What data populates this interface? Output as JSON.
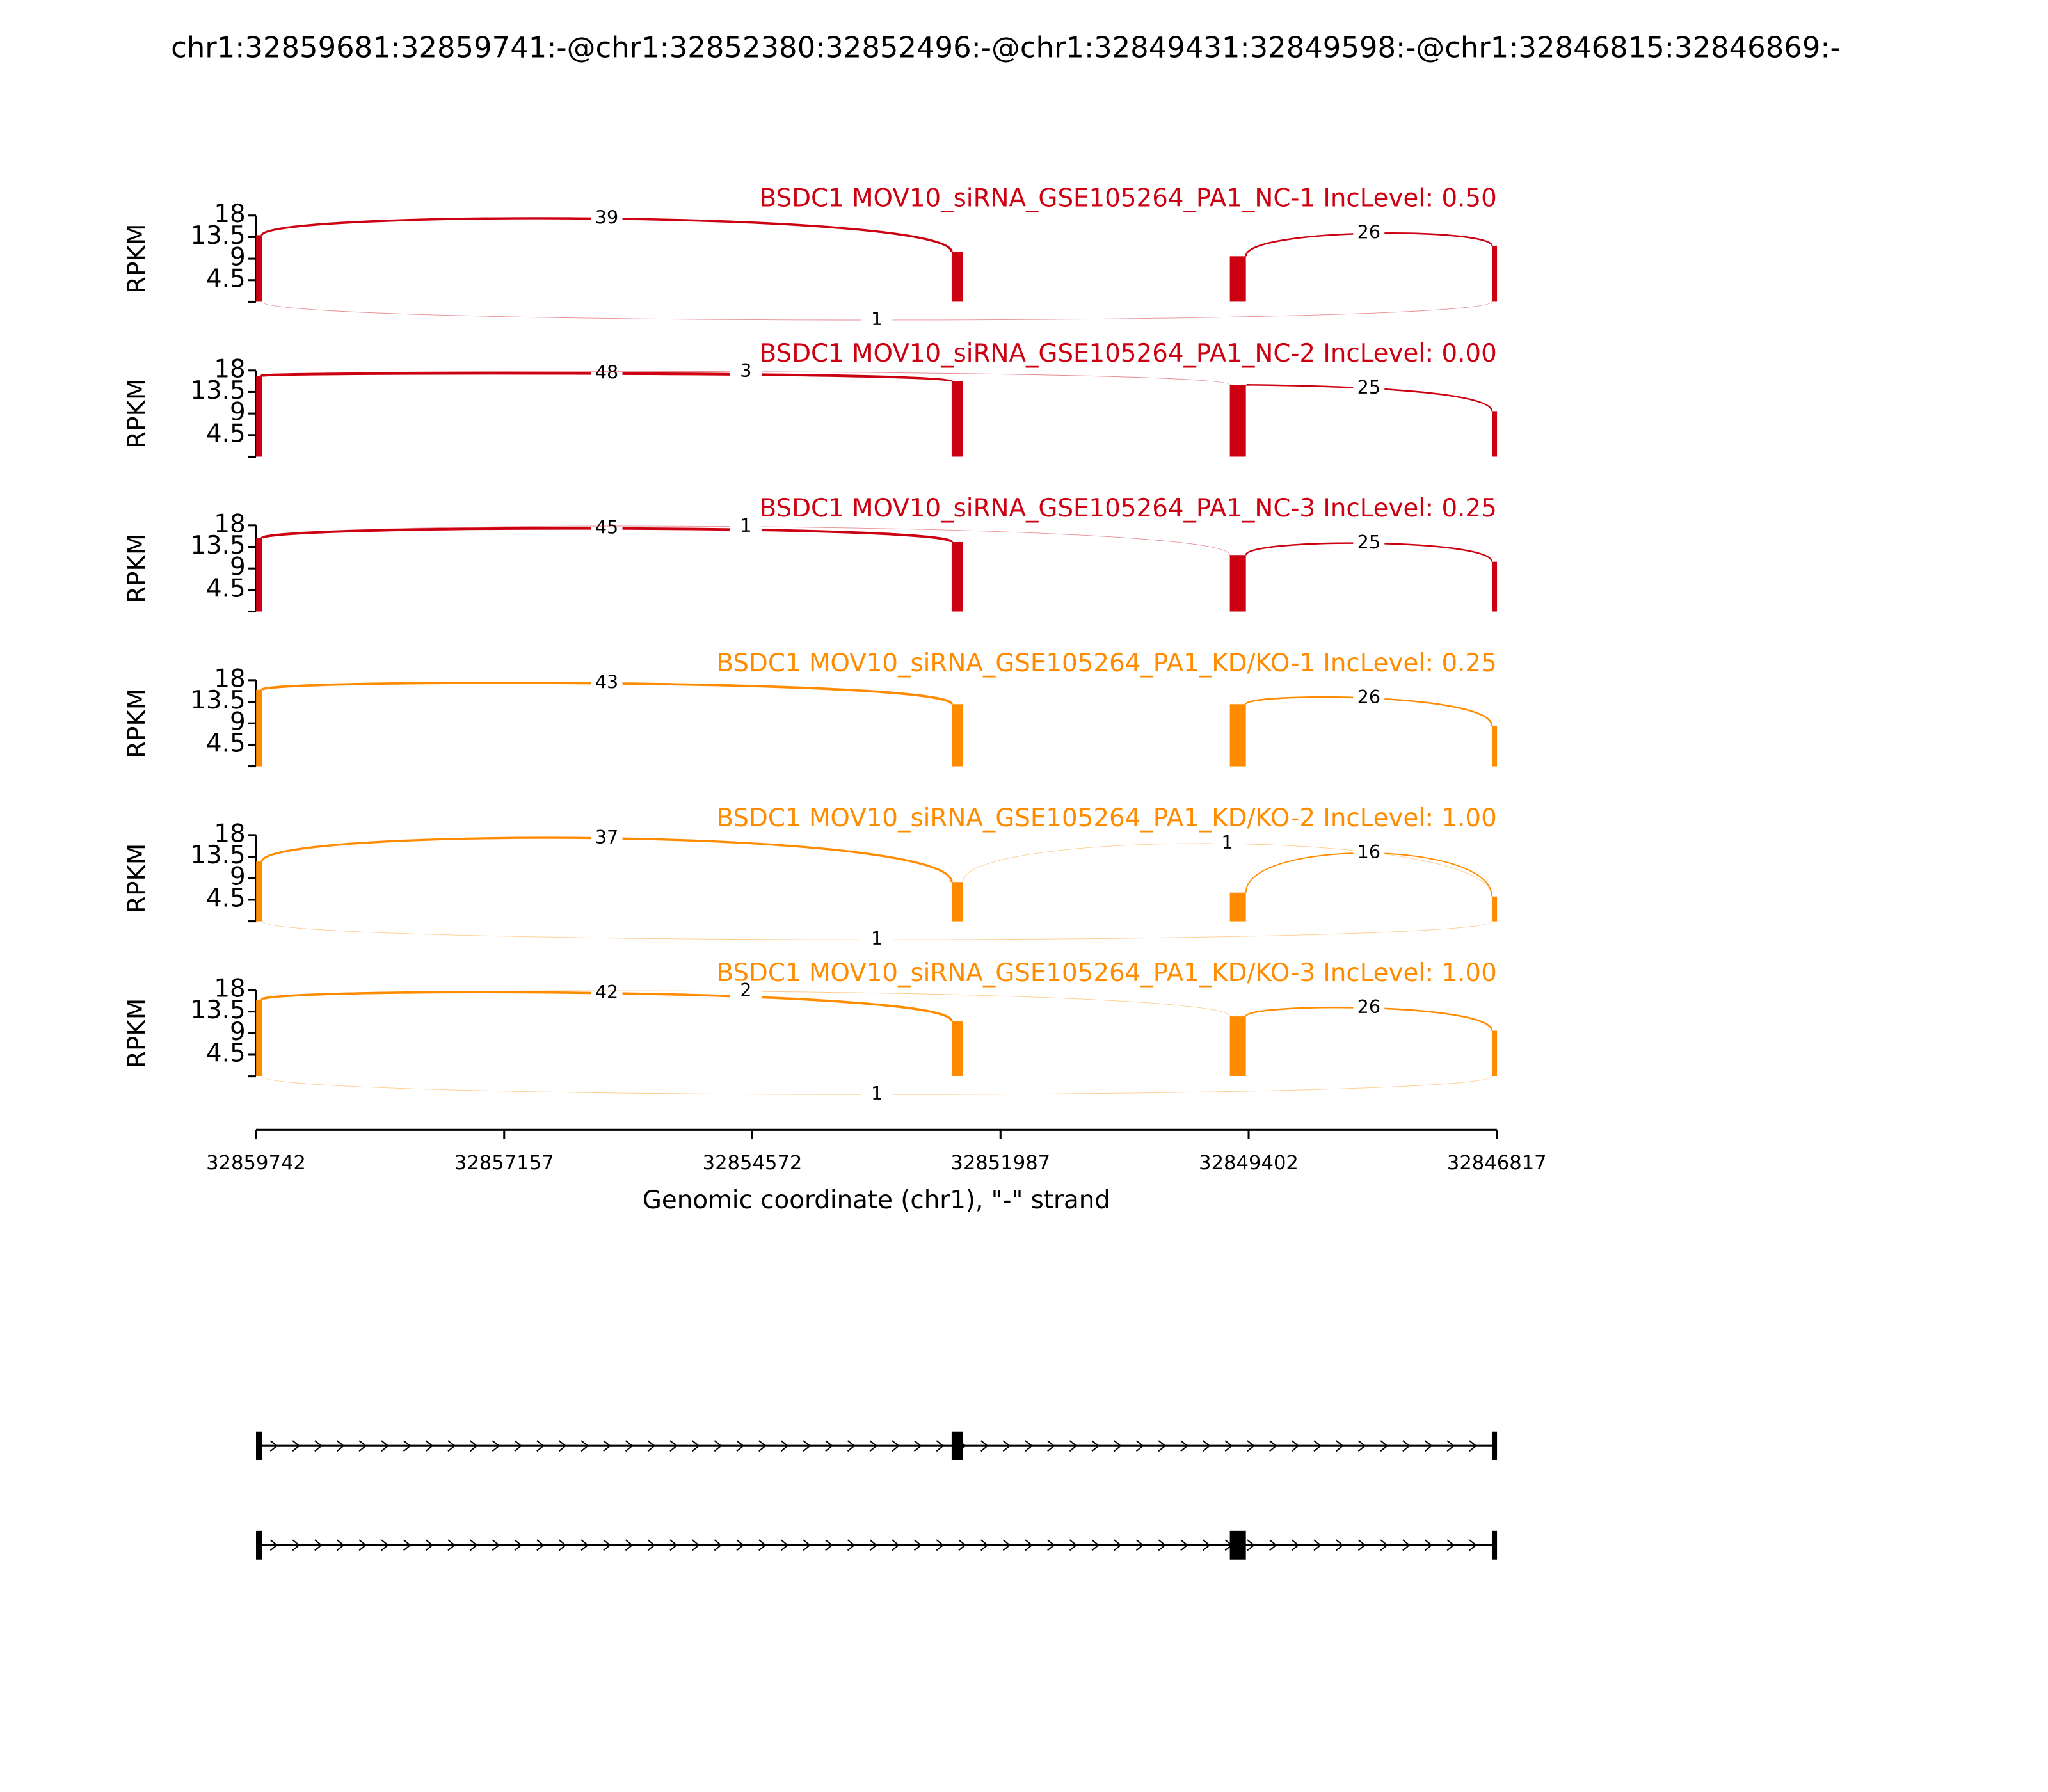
{
  "chart_data": {
    "type": "sashimi",
    "title": "chr1:32859681:32859741:-@chr1:32852380:32852496:-@chr1:32849431:32849598:-@chr1:32846815:32846869:-",
    "ylabel": "RPKM",
    "xlabel": "Genomic coordinate (chr1), \"-\" strand",
    "xlim": [
      32859742,
      32846817
    ],
    "xticks": [
      32859742,
      32857157,
      32854572,
      32851987,
      32849402,
      32846817
    ],
    "ylim": [
      0,
      18
    ],
    "yticks": [
      4.5,
      9,
      13.5,
      18
    ],
    "exons": [
      [
        32859741,
        32859681
      ],
      [
        32852496,
        32852380
      ],
      [
        32849598,
        32849431
      ],
      [
        32846869,
        32846815
      ]
    ],
    "panels": [
      {
        "title": "BSDC1 MOV10_siRNA_GSE105264_PA1_NC-1 IncLevel: 0.50",
        "color": "#cc0011",
        "coverage": [
          13.9,
          10.4,
          9.5,
          11.7
        ],
        "junctions": [
          {
            "start": 32859681,
            "end": 32852496,
            "count": 39
          },
          {
            "start": 32849431,
            "end": 32846869,
            "count": 26
          },
          {
            "start": 32859681,
            "end": 32846869,
            "count": 1
          }
        ]
      },
      {
        "title": "BSDC1 MOV10_siRNA_GSE105264_PA1_NC-2 IncLevel: 0.00",
        "color": "#cc0011",
        "coverage": [
          16.9,
          15.8,
          15,
          9.5
        ],
        "junctions": [
          {
            "start": 32859681,
            "end": 32852496,
            "count": 48
          },
          {
            "start": 32859681,
            "end": 32849598,
            "count": 3
          },
          {
            "start": 32849431,
            "end": 32846869,
            "count": 25
          }
        ]
      },
      {
        "title": "BSDC1 MOV10_siRNA_GSE105264_PA1_NC-3 IncLevel: 0.25",
        "color": "#cc0011",
        "coverage": [
          15.3,
          14.5,
          11.8,
          10.4
        ],
        "junctions": [
          {
            "start": 32859681,
            "end": 32852496,
            "count": 45
          },
          {
            "start": 32859681,
            "end": 32849598,
            "count": 1
          },
          {
            "start": 32849431,
            "end": 32846869,
            "count": 25
          }
        ]
      },
      {
        "title": "BSDC1 MOV10_siRNA_GSE105264_PA1_KD/KO-1 IncLevel: 0.25",
        "color": "#ff8c00",
        "coverage": [
          16,
          13,
          13,
          8.5
        ],
        "junctions": [
          {
            "start": 32859681,
            "end": 32852496,
            "count": 43
          },
          {
            "start": 32849431,
            "end": 32846869,
            "count": 26
          }
        ]
      },
      {
        "title": "BSDC1 MOV10_siRNA_GSE105264_PA1_KD/KO-2 IncLevel: 1.00",
        "color": "#ff8c00",
        "coverage": [
          12.5,
          8.2,
          6,
          5.2
        ],
        "junctions": [
          {
            "start": 32859681,
            "end": 32852496,
            "count": 37
          },
          {
            "start": 32852380,
            "end": 32846869,
            "count": 1
          },
          {
            "start": 32849431,
            "end": 32846869,
            "count": 16
          },
          {
            "start": 32859681,
            "end": 32846869,
            "count": 1
          }
        ]
      },
      {
        "title": "BSDC1 MOV10_siRNA_GSE105264_PA1_KD/KO-3 IncLevel: 1.00",
        "color": "#ff8c00",
        "coverage": [
          16,
          11.5,
          12.5,
          9.5
        ],
        "junctions": [
          {
            "start": 32859681,
            "end": 32852496,
            "count": 42
          },
          {
            "start": 32859681,
            "end": 32849598,
            "count": 2
          },
          {
            "start": 32849431,
            "end": 32846869,
            "count": 26
          },
          {
            "start": 32859681,
            "end": 32846869,
            "count": 1
          }
        ]
      }
    ],
    "transcripts": [
      [
        [
          32859742,
          32859681
        ],
        [
          32852496,
          32852380
        ],
        [
          32846869,
          32846815
        ]
      ],
      [
        [
          32859742,
          32859681
        ],
        [
          32849598,
          32849431
        ],
        [
          32846869,
          32846815
        ]
      ]
    ]
  }
}
